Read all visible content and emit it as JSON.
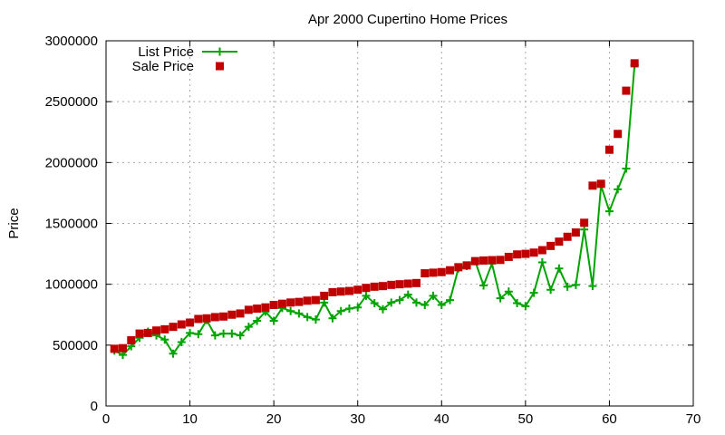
{
  "chart_data": {
    "type": "line",
    "title": "Apr 2000 Cupertino Home Prices",
    "xlabel": "",
    "ylabel": "Price",
    "xlim": [
      0,
      70
    ],
    "ylim": [
      0,
      3000000
    ],
    "xticks": [
      0,
      10,
      20,
      30,
      40,
      50,
      60,
      70
    ],
    "yticks": [
      0,
      500000,
      1000000,
      1500000,
      2000000,
      2500000,
      3000000
    ],
    "grid": true,
    "grid_color": "#a8a8a8",
    "legend_position": "top-left-inside",
    "background": "#ffffff",
    "x": [
      1,
      2,
      3,
      4,
      5,
      6,
      7,
      8,
      9,
      10,
      11,
      12,
      13,
      14,
      15,
      16,
      17,
      18,
      19,
      20,
      21,
      22,
      23,
      24,
      25,
      26,
      27,
      28,
      29,
      30,
      31,
      32,
      33,
      34,
      35,
      36,
      37,
      38,
      39,
      40,
      41,
      42,
      43,
      44,
      45,
      46,
      47,
      48,
      49,
      50,
      51,
      52,
      53,
      54,
      55,
      56,
      57,
      58,
      59,
      60,
      61,
      62,
      63
    ],
    "series": [
      {
        "name": "List Price",
        "color": "#00a400",
        "marker": "plus",
        "line": true,
        "values": [
          455000,
          420000,
          490000,
          560000,
          610000,
          580000,
          545000,
          430000,
          525000,
          600000,
          590000,
          705000,
          580000,
          595000,
          595000,
          580000,
          650000,
          700000,
          775000,
          700000,
          805000,
          780000,
          760000,
          730000,
          710000,
          850000,
          720000,
          780000,
          800000,
          810000,
          905000,
          845000,
          795000,
          850000,
          870000,
          915000,
          850000,
          830000,
          905000,
          830000,
          870000,
          1130000,
          1150000,
          1190000,
          990000,
          1170000,
          885000,
          940000,
          845000,
          820000,
          930000,
          1180000,
          955000,
          1130000,
          980000,
          995000,
          1450000,
          985000,
          1810000,
          1600000,
          1780000,
          1950000,
          2800000
        ]
      },
      {
        "name": "Sale Price",
        "color": "#c00000",
        "marker": "square",
        "line": false,
        "values": [
          470000,
          475000,
          540000,
          595000,
          600000,
          620000,
          630000,
          650000,
          670000,
          685000,
          715000,
          720000,
          730000,
          735000,
          750000,
          760000,
          790000,
          800000,
          810000,
          830000,
          840000,
          850000,
          855000,
          865000,
          870000,
          905000,
          935000,
          940000,
          945000,
          955000,
          970000,
          980000,
          985000,
          995000,
          1000000,
          1005000,
          1010000,
          1090000,
          1095000,
          1100000,
          1115000,
          1140000,
          1155000,
          1190000,
          1195000,
          1198000,
          1200000,
          1225000,
          1245000,
          1250000,
          1260000,
          1280000,
          1315000,
          1350000,
          1390000,
          1425000,
          1505000,
          1810000,
          1825000,
          2105000,
          2235000,
          2590000,
          2815000
        ]
      }
    ]
  }
}
